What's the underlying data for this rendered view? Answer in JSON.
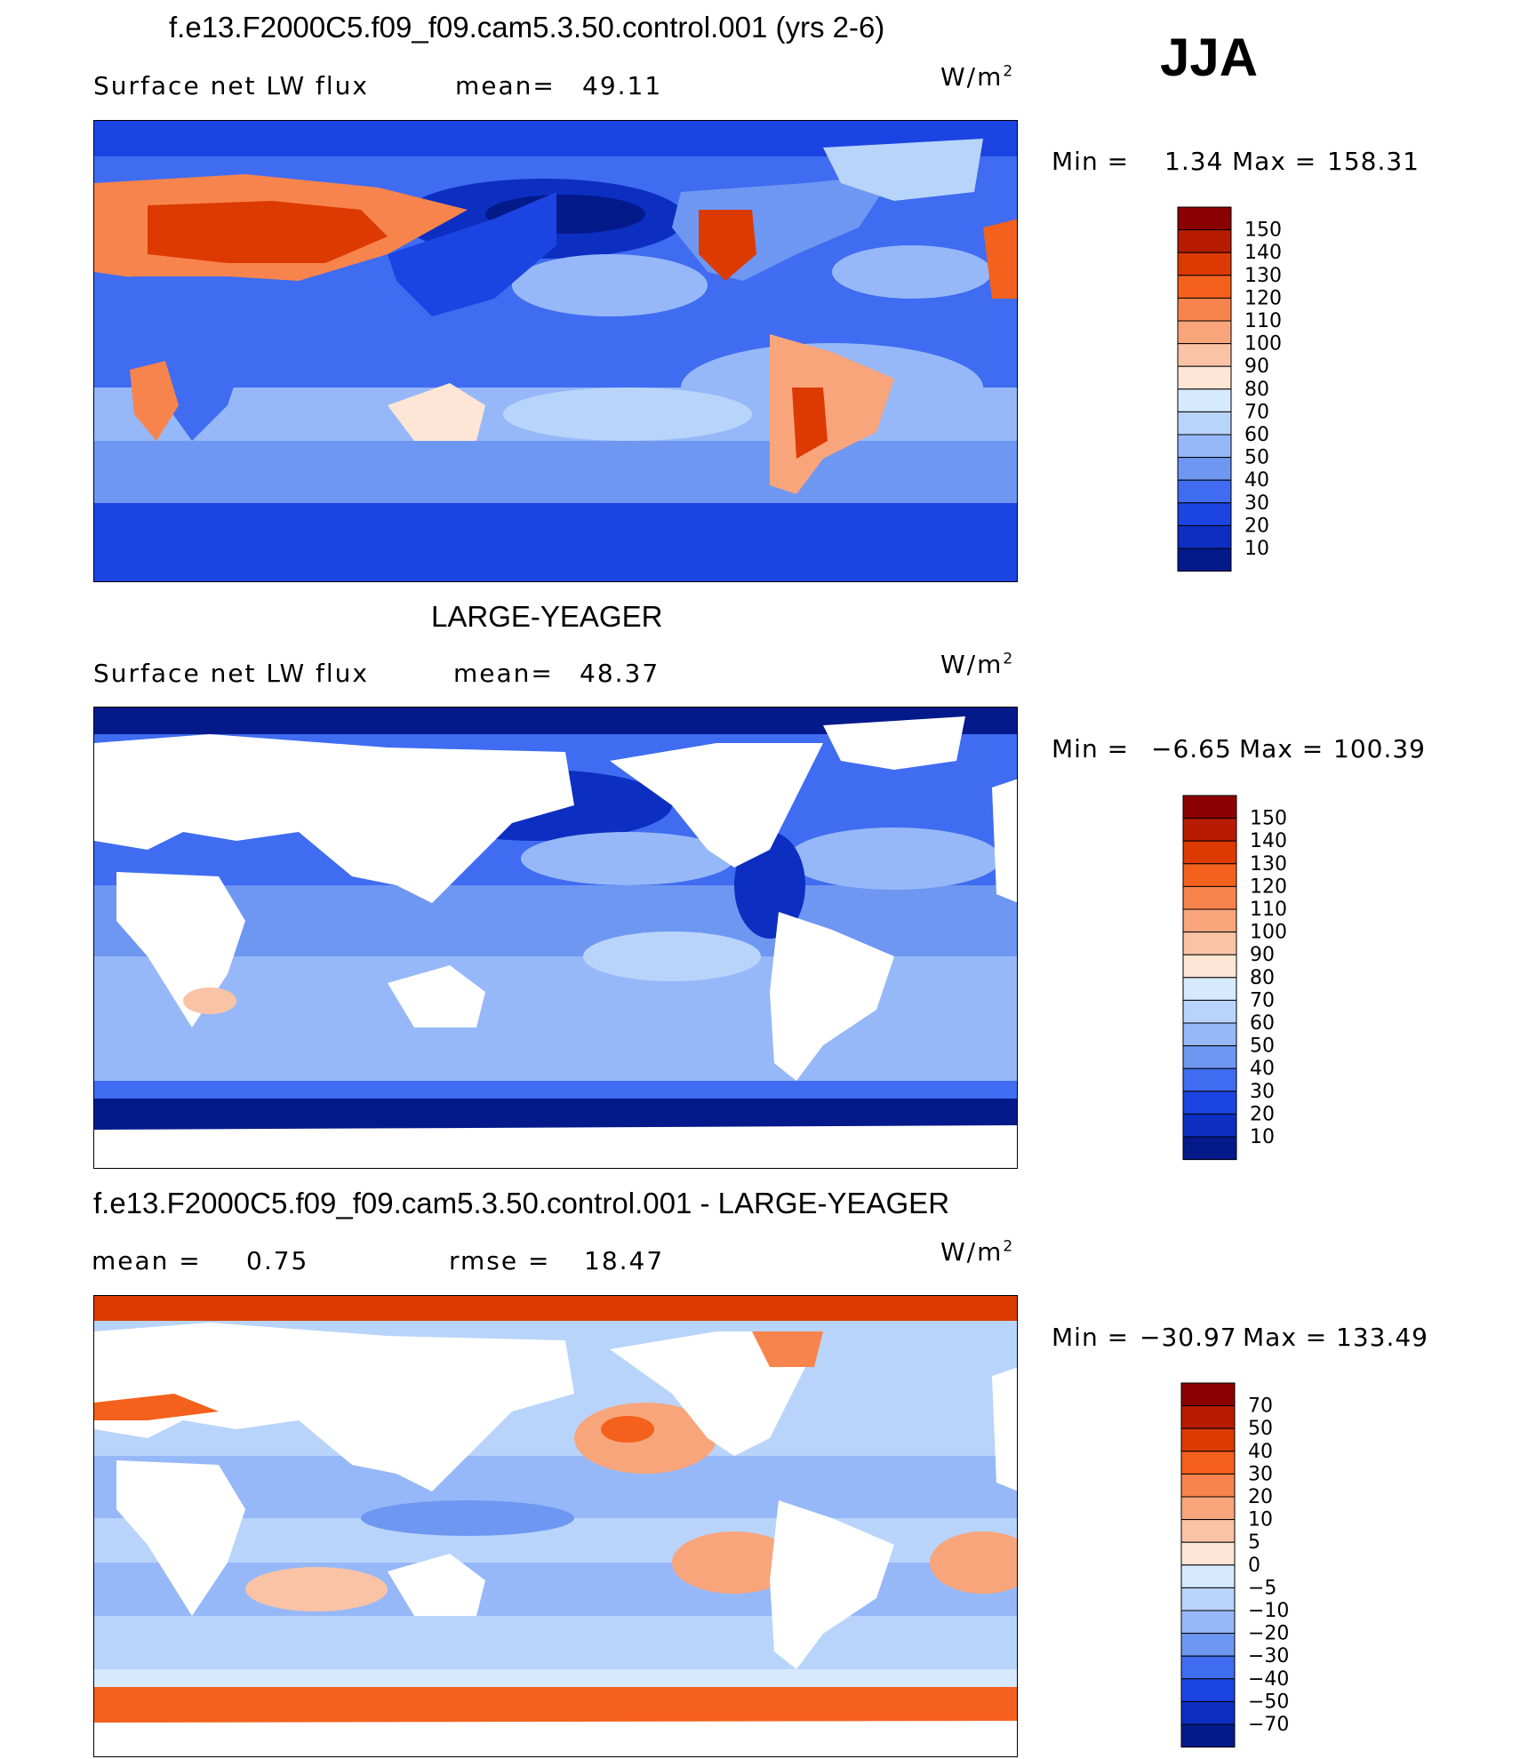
{
  "season": "JJA",
  "chart_data": [
    {
      "type": "heatmap",
      "title": "f.e13.F2000C5.f09_f09.cam5.3.50.control.001 (yrs 2-6)",
      "variable": "Surface net LW flux",
      "stat_label": "mean=",
      "stat_value": "49.11",
      "units": "W/m",
      "units_exp": "2",
      "min_label": "Min  =",
      "min_value": "1.34",
      "max_label": "Max  =",
      "max_value": "158.31",
      "colorbar_levels": [
        "150",
        "140",
        "130",
        "120",
        "110",
        "100",
        "90",
        "80",
        "70",
        "60",
        "50",
        "40",
        "30",
        "20",
        "10"
      ],
      "colorbar_colors": [
        "#8b0000",
        "#b71c00",
        "#dc3a00",
        "#f4611c",
        "#f8844d",
        "#f8a57c",
        "#fac3a6",
        "#fde6d5",
        "#d6e9fd",
        "#b9d4fb",
        "#96b8f8",
        "#6e97f2",
        "#3f6cf0",
        "#1c44e3",
        "#0c2fc2",
        "#04198a"
      ]
    },
    {
      "type": "heatmap",
      "title": "LARGE-YEAGER",
      "variable": "Surface net LW flux",
      "stat_label": "mean=",
      "stat_value": "48.37",
      "units": "W/m",
      "units_exp": "2",
      "min_label": "Min  =",
      "min_value": "−6.65",
      "max_label": "Max  =",
      "max_value": "100.39",
      "colorbar_levels": [
        "150",
        "140",
        "130",
        "120",
        "110",
        "100",
        "90",
        "80",
        "70",
        "60",
        "50",
        "40",
        "30",
        "20",
        "10"
      ],
      "colorbar_colors": [
        "#8b0000",
        "#b71c00",
        "#dc3a00",
        "#f4611c",
        "#f8844d",
        "#f8a57c",
        "#fac3a6",
        "#fde6d5",
        "#d6e9fd",
        "#b9d4fb",
        "#96b8f8",
        "#6e97f2",
        "#3f6cf0",
        "#1c44e3",
        "#0c2fc2",
        "#04198a"
      ]
    },
    {
      "type": "heatmap",
      "title": "f.e13.F2000C5.f09_f09.cam5.3.50.control.001 - LARGE-YEAGER",
      "stat_label": "mean  =",
      "stat_value": "0.75",
      "rmse_label": "rmse  =",
      "rmse_value": "18.47",
      "units": "W/m",
      "units_exp": "2",
      "min_label": "Min  =",
      "min_value": "−30.97",
      "max_label": "Max  =",
      "max_value": "133.49",
      "colorbar_levels": [
        "70",
        "50",
        "40",
        "30",
        "20",
        "10",
        "5",
        "0",
        "−5",
        "−10",
        "−20",
        "−30",
        "−40",
        "−50",
        "−70"
      ],
      "colorbar_colors": [
        "#8b0000",
        "#b71c00",
        "#dc3a00",
        "#f4611c",
        "#f8844d",
        "#f8a57c",
        "#fac3a6",
        "#fde6d5",
        "#d6e9fd",
        "#b9d4fb",
        "#96b8f8",
        "#6e97f2",
        "#3f6cf0",
        "#1c44e3",
        "#0c2fc2",
        "#04198a"
      ]
    }
  ]
}
